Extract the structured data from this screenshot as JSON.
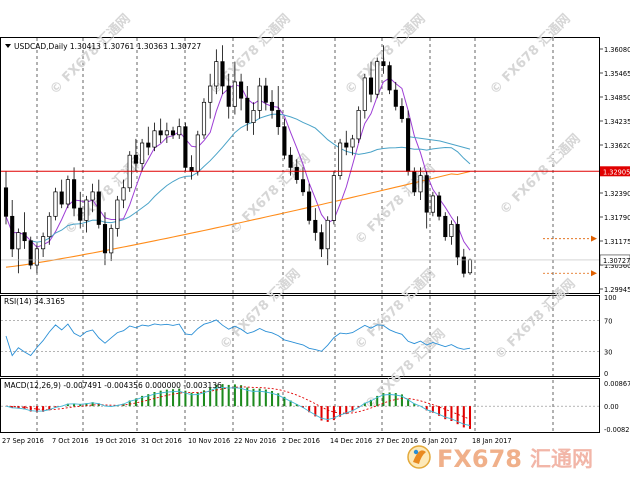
{
  "symbol_header": {
    "menu_icon": "triangle-down-icon",
    "text": "USDCAD,Daily  1.30413 1.30761 1.30363 1.30727"
  },
  "rsi_label": "RSI(14) 34.3165",
  "macd_label": "MACD(12,26,9) -0.007491 -0.004356 0.000000 -0.003136",
  "price_axis": [
    "1.36080",
    "1.35465",
    "1.34850",
    "1.34235",
    "1.33620",
    "1.33005",
    "1.32390",
    "1.31790",
    "1.31175",
    "1.30560",
    "1.29945"
  ],
  "price_tags": {
    "red_line": "1.32905",
    "current": "1.30727"
  },
  "rsi_axis": [
    "100",
    "70",
    "30",
    "0"
  ],
  "macd_axis": [
    "0.008675",
    "0.00",
    "-0.008251"
  ],
  "date_axis": [
    "27 Sep 2016",
    "7 Oct 2016",
    "19 Oct 2016",
    "31 Oct 2016",
    "10 Nov 2016",
    "22 Nov 2016",
    "2 Dec 2016",
    "14 Dec 2016",
    "27 Dec 2016",
    "6 Jan 2017",
    "18 Jan 2017"
  ],
  "watermark": {
    "text": "FX678",
    "cn": "汇通网",
    "brand_text": "FX678",
    "brand_cn": "汇通网"
  },
  "colors": {
    "bull": "#ffffff",
    "bear": "#000000",
    "ma_fast": "#9e3fd6",
    "ma_mid": "#4aa3c8",
    "ma_slow": "#ff8c1a",
    "red_level": "#e00000",
    "rsi": "#2a8fd6",
    "macd_pos": "#1d8a1d",
    "macd_neg": "#e00000"
  },
  "chart_data": {
    "type": "candlestick",
    "symbol": "USDCAD",
    "timeframe": "Daily",
    "ylim": [
      1.2994,
      1.3613
    ],
    "horizontal_line": 1.32905,
    "last_price": 1.30727,
    "candles": [
      [
        1.325,
        1.329,
        1.316,
        1.318
      ],
      [
        1.318,
        1.322,
        1.308,
        1.31
      ],
      [
        1.31,
        1.315,
        1.304,
        1.314
      ],
      [
        1.314,
        1.319,
        1.31,
        1.312
      ],
      [
        1.312,
        1.313,
        1.305,
        1.306
      ],
      [
        1.306,
        1.311,
        1.304,
        1.31
      ],
      [
        1.31,
        1.314,
        1.308,
        1.313
      ],
      [
        1.313,
        1.319,
        1.311,
        1.318
      ],
      [
        1.318,
        1.325,
        1.317,
        1.324
      ],
      [
        1.324,
        1.327,
        1.32,
        1.321
      ],
      [
        1.321,
        1.328,
        1.32,
        1.327
      ],
      [
        1.327,
        1.33,
        1.318,
        1.32
      ],
      [
        1.32,
        1.324,
        1.315,
        1.317
      ],
      [
        1.317,
        1.323,
        1.314,
        1.322
      ],
      [
        1.322,
        1.326,
        1.319,
        1.324
      ],
      [
        1.324,
        1.327,
        1.315,
        1.316
      ],
      [
        1.316,
        1.319,
        1.306,
        1.309
      ],
      [
        1.309,
        1.316,
        1.307,
        1.315
      ],
      [
        1.315,
        1.323,
        1.313,
        1.322
      ],
      [
        1.322,
        1.327,
        1.32,
        1.325
      ],
      [
        1.325,
        1.334,
        1.324,
        1.333
      ],
      [
        1.333,
        1.337,
        1.329,
        1.331
      ],
      [
        1.331,
        1.337,
        1.329,
        1.336
      ],
      [
        1.336,
        1.34,
        1.333,
        1.335
      ],
      [
        1.335,
        1.341,
        1.334,
        1.339
      ],
      [
        1.339,
        1.342,
        1.336,
        1.338
      ],
      [
        1.338,
        1.341,
        1.336,
        1.339
      ],
      [
        1.339,
        1.34,
        1.337,
        1.338
      ],
      [
        1.338,
        1.342,
        1.337,
        1.34
      ],
      [
        1.34,
        1.341,
        1.329,
        1.33
      ],
      [
        1.33,
        1.333,
        1.327,
        1.329
      ],
      [
        1.329,
        1.339,
        1.328,
        1.338
      ],
      [
        1.338,
        1.347,
        1.337,
        1.346
      ],
      [
        1.346,
        1.353,
        1.342,
        1.35
      ],
      [
        1.35,
        1.359,
        1.348,
        1.356
      ],
      [
        1.356,
        1.36,
        1.348,
        1.35
      ],
      [
        1.35,
        1.353,
        1.342,
        1.345
      ],
      [
        1.345,
        1.356,
        1.343,
        1.351
      ],
      [
        1.351,
        1.353,
        1.344,
        1.347
      ],
      [
        1.347,
        1.35,
        1.339,
        1.341
      ],
      [
        1.341,
        1.346,
        1.338,
        1.344
      ],
      [
        1.344,
        1.352,
        1.342,
        1.35
      ],
      [
        1.35,
        1.352,
        1.344,
        1.346
      ],
      [
        1.346,
        1.349,
        1.342,
        1.344
      ],
      [
        1.344,
        1.35,
        1.338,
        1.34
      ],
      [
        1.34,
        1.342,
        1.332,
        1.333
      ],
      [
        1.333,
        1.335,
        1.328,
        1.33
      ],
      [
        1.33,
        1.332,
        1.326,
        1.327
      ],
      [
        1.327,
        1.33,
        1.323,
        1.324
      ],
      [
        1.324,
        1.326,
        1.316,
        1.317
      ],
      [
        1.317,
        1.32,
        1.312,
        1.314
      ],
      [
        1.314,
        1.316,
        1.308,
        1.31
      ],
      [
        1.31,
        1.318,
        1.306,
        1.317
      ],
      [
        1.317,
        1.329,
        1.316,
        1.328
      ],
      [
        1.328,
        1.337,
        1.327,
        1.336
      ],
      [
        1.336,
        1.339,
        1.333,
        1.335
      ],
      [
        1.335,
        1.338,
        1.333,
        1.337
      ],
      [
        1.337,
        1.345,
        1.336,
        1.344
      ],
      [
        1.344,
        1.353,
        1.342,
        1.352
      ],
      [
        1.352,
        1.356,
        1.346,
        1.348
      ],
      [
        1.348,
        1.357,
        1.347,
        1.356
      ],
      [
        1.356,
        1.36,
        1.353,
        1.355
      ],
      [
        1.355,
        1.356,
        1.348,
        1.349
      ],
      [
        1.349,
        1.351,
        1.344,
        1.345
      ],
      [
        1.345,
        1.347,
        1.341,
        1.342
      ],
      [
        1.342,
        1.344,
        1.328,
        1.329
      ],
      [
        1.329,
        1.33,
        1.323,
        1.324
      ],
      [
        1.324,
        1.33,
        1.322,
        1.328
      ],
      [
        1.328,
        1.329,
        1.315,
        1.319
      ],
      [
        1.319,
        1.324,
        1.318,
        1.323
      ],
      [
        1.323,
        1.324,
        1.317,
        1.318
      ],
      [
        1.318,
        1.319,
        1.312,
        1.313
      ],
      [
        1.313,
        1.317,
        1.311,
        1.316
      ],
      [
        1.316,
        1.318,
        1.306,
        1.308
      ],
      [
        1.308,
        1.31,
        1.303,
        1.304
      ],
      [
        1.3041,
        1.3076,
        1.3036,
        1.3073
      ]
    ],
    "rsi": {
      "period": 14,
      "last": 34.3165,
      "levels": [
        70,
        30
      ],
      "ylim": [
        0,
        100
      ]
    },
    "macd": {
      "fast": 12,
      "slow": 26,
      "signal": 9,
      "main": -0.007491,
      "signal_value": -0.004356,
      "ylim": [
        -0.008251,
        0.008675
      ]
    }
  }
}
